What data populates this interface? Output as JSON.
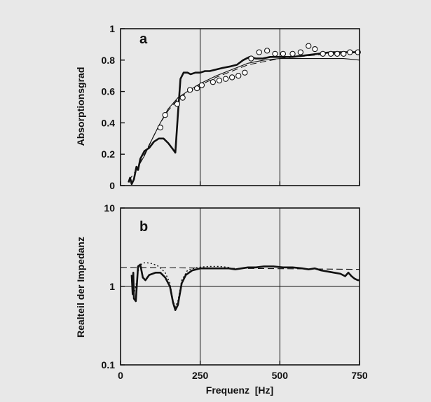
{
  "chart_data": [
    {
      "type": "line",
      "panel_label": "a",
      "ylabel": "Absorptionsgrad",
      "xlabel": "",
      "xlim": [
        0,
        750
      ],
      "ylim": [
        0,
        1
      ],
      "x_ticks": [
        0,
        250,
        500,
        750
      ],
      "x_tick_labels": [
        "",
        "",
        "",
        ""
      ],
      "y_ticks": [
        0,
        0.2,
        0.4,
        0.6,
        0.8,
        1
      ],
      "y_tick_labels": [
        "0",
        "0.2",
        "0.4",
        "0.6",
        "0.8",
        "1"
      ],
      "grid": "x",
      "series": [
        {
          "style": "thick-solid",
          "points": [
            [
              25,
              0.02
            ],
            [
              30,
              0.05
            ],
            [
              35,
              0.01
            ],
            [
              42,
              0.04
            ],
            [
              50,
              0.12
            ],
            [
              55,
              0.1
            ],
            [
              62,
              0.17
            ],
            [
              75,
              0.22
            ],
            [
              90,
              0.24
            ],
            [
              105,
              0.28
            ],
            [
              120,
              0.3
            ],
            [
              135,
              0.3
            ],
            [
              150,
              0.27
            ],
            [
              165,
              0.23
            ],
            [
              172,
              0.21
            ],
            [
              180,
              0.45
            ],
            [
              188,
              0.68
            ],
            [
              198,
              0.72
            ],
            [
              210,
              0.72
            ],
            [
              220,
              0.71
            ],
            [
              235,
              0.72
            ],
            [
              250,
              0.72
            ],
            [
              265,
              0.73
            ],
            [
              280,
              0.73
            ],
            [
              300,
              0.74
            ],
            [
              320,
              0.75
            ],
            [
              345,
              0.76
            ],
            [
              365,
              0.77
            ],
            [
              385,
              0.8
            ],
            [
              405,
              0.82
            ],
            [
              425,
              0.81
            ],
            [
              445,
              0.81
            ],
            [
              470,
              0.82
            ],
            [
              500,
              0.82
            ],
            [
              540,
              0.82
            ],
            [
              580,
              0.83
            ],
            [
              620,
              0.84
            ],
            [
              660,
              0.85
            ],
            [
              700,
              0.85
            ],
            [
              740,
              0.85
            ],
            [
              750,
              0.85
            ]
          ]
        },
        {
          "style": "thin-solid",
          "points": [
            [
              55,
              0.12
            ],
            [
              75,
              0.19
            ],
            [
              100,
              0.3
            ],
            [
              125,
              0.4
            ],
            [
              150,
              0.49
            ],
            [
              180,
              0.56
            ],
            [
              210,
              0.6
            ],
            [
              250,
              0.65
            ],
            [
              300,
              0.7
            ],
            [
              350,
              0.74
            ],
            [
              400,
              0.78
            ],
            [
              450,
              0.8
            ],
            [
              500,
              0.81
            ],
            [
              550,
              0.81
            ],
            [
              600,
              0.81
            ],
            [
              650,
              0.81
            ],
            [
              700,
              0.81
            ],
            [
              750,
              0.8
            ]
          ]
        },
        {
          "style": "dashed",
          "points": [
            [
              25,
              0.03
            ],
            [
              50,
              0.1
            ],
            [
              75,
              0.2
            ],
            [
              100,
              0.3
            ],
            [
              125,
              0.4
            ],
            [
              150,
              0.48
            ],
            [
              175,
              0.54
            ],
            [
              200,
              0.58
            ],
            [
              250,
              0.64
            ],
            [
              300,
              0.69
            ],
            [
              350,
              0.73
            ],
            [
              400,
              0.77
            ],
            [
              450,
              0.79
            ],
            [
              500,
              0.81
            ],
            [
              550,
              0.82
            ],
            [
              600,
              0.83
            ],
            [
              650,
              0.84
            ],
            [
              700,
              0.84
            ],
            [
              750,
              0.85
            ]
          ]
        },
        {
          "style": "circles",
          "points": [
            [
              125,
              0.37
            ],
            [
              140,
              0.45
            ],
            [
              178,
              0.52
            ],
            [
              195,
              0.56
            ],
            [
              218,
              0.61
            ],
            [
              240,
              0.62
            ],
            [
              255,
              0.64
            ],
            [
              290,
              0.66
            ],
            [
              310,
              0.67
            ],
            [
              330,
              0.68
            ],
            [
              350,
              0.69
            ],
            [
              370,
              0.7
            ],
            [
              390,
              0.72
            ],
            [
              410,
              0.81
            ],
            [
              435,
              0.85
            ],
            [
              460,
              0.86
            ],
            [
              485,
              0.84
            ],
            [
              510,
              0.84
            ],
            [
              540,
              0.84
            ],
            [
              565,
              0.85
            ],
            [
              590,
              0.89
            ],
            [
              610,
              0.87
            ],
            [
              635,
              0.84
            ],
            [
              660,
              0.84
            ],
            [
              680,
              0.84
            ],
            [
              700,
              0.84
            ],
            [
              720,
              0.85
            ],
            [
              745,
              0.85
            ]
          ]
        }
      ]
    },
    {
      "type": "line",
      "panel_label": "b",
      "ylabel": "Realteil der Impedanz",
      "xlabel": "Frequenz  [Hz]",
      "xlim": [
        0,
        750
      ],
      "ylim": [
        0.1,
        10
      ],
      "yscale": "log",
      "x_ticks": [
        0,
        250,
        500,
        750
      ],
      "x_tick_labels": [
        "0",
        "250",
        "500",
        "750"
      ],
      "y_ticks": [
        0.1,
        1,
        10
      ],
      "y_tick_labels": [
        "0.1",
        "1",
        "10"
      ],
      "grid": "x, y=1",
      "series": [
        {
          "style": "thick-solid",
          "points": [
            [
              35,
              1.4
            ],
            [
              38,
              0.8
            ],
            [
              40,
              1.5
            ],
            [
              42,
              0.7
            ],
            [
              48,
              0.65
            ],
            [
              55,
              1.8
            ],
            [
              62,
              1.9
            ],
            [
              70,
              1.3
            ],
            [
              78,
              1.2
            ],
            [
              90,
              1.4
            ],
            [
              110,
              1.5
            ],
            [
              125,
              1.5
            ],
            [
              140,
              1.3
            ],
            [
              155,
              1.0
            ],
            [
              165,
              0.62
            ],
            [
              172,
              0.5
            ],
            [
              180,
              0.58
            ],
            [
              192,
              1.1
            ],
            [
              205,
              1.4
            ],
            [
              225,
              1.6
            ],
            [
              250,
              1.7
            ],
            [
              280,
              1.7
            ],
            [
              310,
              1.7
            ],
            [
              340,
              1.7
            ],
            [
              360,
              1.65
            ],
            [
              380,
              1.7
            ],
            [
              400,
              1.75
            ],
            [
              425,
              1.75
            ],
            [
              450,
              1.8
            ],
            [
              480,
              1.8
            ],
            [
              510,
              1.75
            ],
            [
              540,
              1.75
            ],
            [
              570,
              1.7
            ],
            [
              590,
              1.65
            ],
            [
              610,
              1.7
            ],
            [
              630,
              1.6
            ],
            [
              650,
              1.55
            ],
            [
              670,
              1.5
            ],
            [
              690,
              1.45
            ],
            [
              705,
              1.35
            ],
            [
              715,
              1.5
            ],
            [
              725,
              1.35
            ],
            [
              735,
              1.25
            ],
            [
              745,
              1.2
            ],
            [
              750,
              1.2
            ]
          ]
        },
        {
          "style": "dotted",
          "points": [
            [
              35,
              1.2
            ],
            [
              40,
              0.75
            ],
            [
              48,
              1.0
            ],
            [
              58,
              1.8
            ],
            [
              70,
              2.0
            ],
            [
              85,
              2.0
            ],
            [
              100,
              1.95
            ],
            [
              120,
              1.8
            ],
            [
              140,
              1.5
            ],
            [
              155,
              1.1
            ],
            [
              165,
              0.65
            ],
            [
              172,
              0.55
            ],
            [
              180,
              0.65
            ],
            [
              192,
              1.2
            ],
            [
              210,
              1.6
            ],
            [
              240,
              1.75
            ],
            [
              280,
              1.8
            ],
            [
              310,
              1.8
            ],
            [
              340,
              1.75
            ]
          ]
        },
        {
          "style": "dashed",
          "points": [
            [
              0,
              1.75
            ],
            [
              750,
              1.65
            ]
          ]
        }
      ]
    }
  ]
}
